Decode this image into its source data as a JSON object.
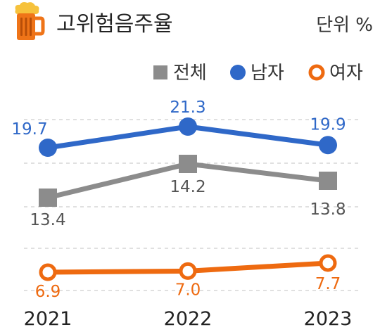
{
  "title": "고위험음주율",
  "unit": "단위 %",
  "icon": "beer-mug-icon",
  "chart_data": {
    "type": "line",
    "categories": [
      "2021",
      "2022",
      "2023"
    ],
    "series": [
      {
        "name": "전체",
        "values": [
          13.4,
          14.2,
          13.8
        ],
        "color": "#8c8c8c",
        "marker": "square",
        "labels": [
          "13.4",
          "14.2",
          "13.8"
        ]
      },
      {
        "name": "남자",
        "values": [
          19.7,
          21.3,
          19.9
        ],
        "color": "#2f68c8",
        "marker": "circle",
        "labels": [
          "19.7",
          "21.3",
          "19.9"
        ]
      },
      {
        "name": "여자",
        "values": [
          6.9,
          7.0,
          7.7
        ],
        "color": "#ee6a10",
        "marker": "hollow-circle",
        "labels": [
          "6.9",
          "7.0",
          "7.7"
        ]
      }
    ],
    "legend": "top-right",
    "grid": true
  }
}
